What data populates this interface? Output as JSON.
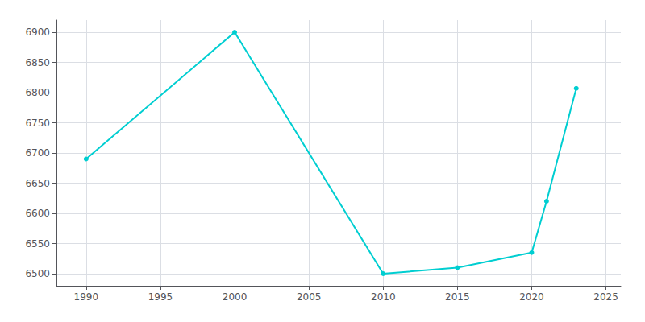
{
  "chart_data": {
    "type": "line",
    "x": [
      1990,
      2000,
      2010,
      2015,
      2020,
      2021,
      2023
    ],
    "values": [
      6690,
      6900,
      6500,
      6510,
      6535,
      6620,
      6807
    ],
    "color": "#00CED1",
    "marker": "circle",
    "xlim": [
      1988,
      2026
    ],
    "xticks": [
      1990,
      1995,
      2000,
      2005,
      2010,
      2015,
      2020,
      2025
    ],
    "ylim": [
      6480,
      6920
    ],
    "yticks": [
      6500,
      6550,
      6600,
      6650,
      6700,
      6750,
      6800,
      6850,
      6900
    ],
    "grid": true
  }
}
